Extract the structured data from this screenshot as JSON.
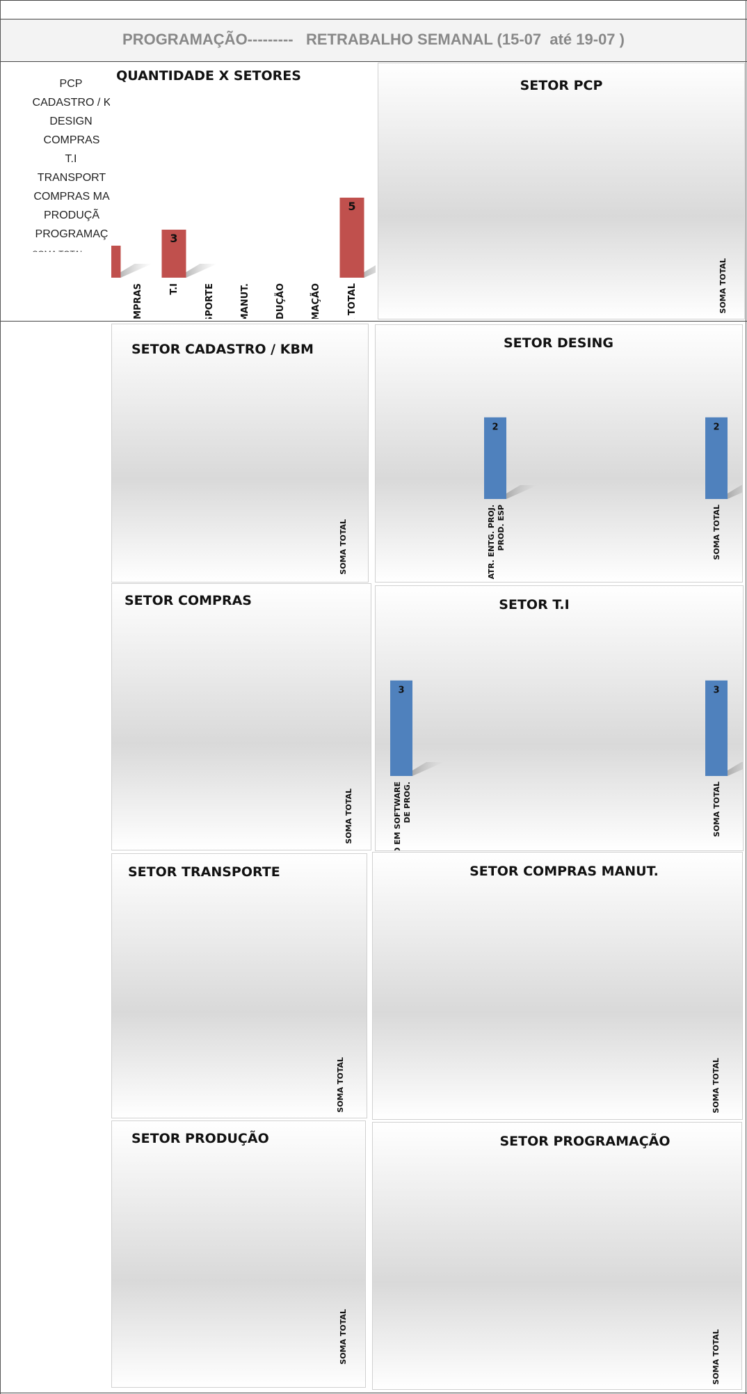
{
  "header": {
    "title": "PROGRAMAÇÃO---------   RETRABALHO SEMANAL (15-07  até 19-07 )"
  },
  "left_list": [
    "PCP",
    "CADASTRO / K",
    "DESIGN",
    "COMPRAS",
    "T.I",
    "TRANSPORT",
    "COMPRAS MA",
    "PRODUÇÃ",
    "PROGRAMAÇ",
    "SOMA TOTAL"
  ],
  "colors": {
    "red_bar": "#C0504D",
    "blue_bar": "#4F81BD",
    "header_bg": "#F3F3F3",
    "title_gray": "#888888"
  },
  "chart_data": [
    {
      "id": "main",
      "type": "bar",
      "title": "QUANTIDADE X SETORES",
      "categories": [
        "",
        "COMPRAS",
        "T.I",
        "TRANSPORTE",
        "COMPRAS MANUT.",
        "PRODUÇÃO",
        "PROGRAMAÇÃO",
        "SOMA TOTAL"
      ],
      "values": [
        2,
        0,
        3,
        0,
        0,
        0,
        0,
        5
      ],
      "data_labels": [
        "",
        "",
        "3",
        "",
        "",
        "",
        "",
        "5"
      ],
      "ylim": [
        0,
        8
      ]
    },
    {
      "id": "pcp",
      "type": "bar",
      "title": "SETOR PCP",
      "categories": [
        "SOMA TOTAL"
      ],
      "values": [
        0
      ],
      "data_labels": [
        ""
      ],
      "ylim": [
        0,
        3
      ]
    },
    {
      "id": "cadastro",
      "type": "bar",
      "title": "SETOR CADASTRO  / KBM",
      "categories": [
        "SOMA TOTAL"
      ],
      "values": [
        0
      ],
      "data_labels": [
        ""
      ],
      "ylim": [
        0,
        3
      ]
    },
    {
      "id": "desing",
      "type": "bar",
      "title": "SETOR DESING",
      "categories": [
        "ATR. ENTG. PROJ. PROD. ESP",
        "SOMA TOTAL"
      ],
      "values": [
        2,
        2
      ],
      "data_labels": [
        "2",
        "2"
      ],
      "ylim": [
        0,
        2.25
      ]
    },
    {
      "id": "compras",
      "type": "bar",
      "title": "SETOR COMPRAS",
      "categories": [
        "SOMA TOTAL"
      ],
      "values": [
        0
      ],
      "data_labels": [
        ""
      ],
      "ylim": [
        0,
        3
      ]
    },
    {
      "id": "ti",
      "type": "bar",
      "title": "SETOR T.I",
      "categories": [
        "CORREÇÃO EM SOFTWARE DE PROG.",
        "SOMA TOTAL"
      ],
      "values": [
        3,
        3
      ],
      "data_labels": [
        "3",
        "3"
      ],
      "ylim": [
        0,
        3.3
      ]
    },
    {
      "id": "transporte",
      "type": "bar",
      "title": "SETOR TRANSPORTE",
      "categories": [
        "SOMA TOTAL"
      ],
      "values": [
        0
      ],
      "data_labels": [
        ""
      ],
      "ylim": [
        0,
        3
      ]
    },
    {
      "id": "comprasmanut",
      "type": "bar",
      "title": "SETOR COMPRAS MANUT.",
      "categories": [
        "SOMA TOTAL"
      ],
      "values": [
        0
      ],
      "data_labels": [
        ""
      ],
      "ylim": [
        0,
        3
      ]
    },
    {
      "id": "producao",
      "type": "bar",
      "title": "SETOR PRODUÇÃO",
      "categories": [
        "SOMA TOTAL"
      ],
      "values": [
        0
      ],
      "data_labels": [
        ""
      ],
      "ylim": [
        0,
        3
      ]
    },
    {
      "id": "programacao",
      "type": "bar",
      "title": "SETOR PROGRAMAÇÃO",
      "categories": [
        "SOMA TOTAL"
      ],
      "values": [
        0
      ],
      "data_labels": [
        ""
      ],
      "ylim": [
        0,
        3
      ]
    }
  ]
}
